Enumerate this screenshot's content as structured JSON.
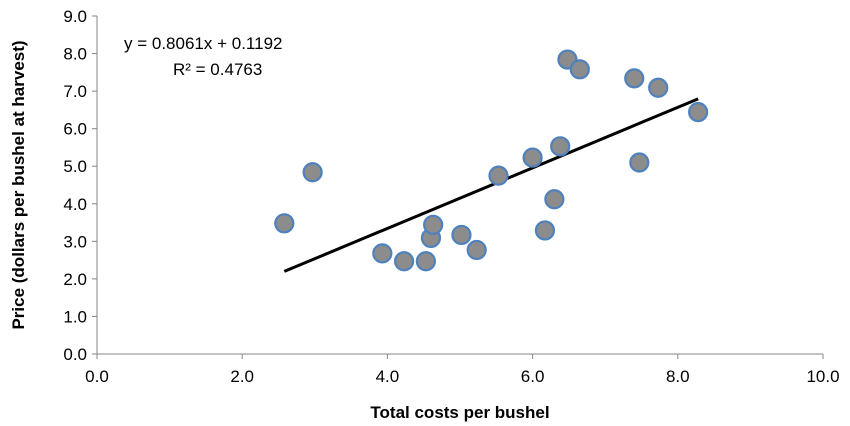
{
  "chart_data": {
    "type": "scatter",
    "title": "",
    "xlabel": "Total costs per bushel",
    "ylabel": "Price (dollars per bushel at harvest)",
    "xlim": [
      0,
      10
    ],
    "ylim": [
      0,
      9
    ],
    "x_ticks": [
      "0.0",
      "2.0",
      "4.0",
      "6.0",
      "8.0",
      "10.0"
    ],
    "y_ticks": [
      "0.0",
      "1.0",
      "2.0",
      "3.0",
      "4.0",
      "5.0",
      "6.0",
      "7.0",
      "8.0",
      "9.0"
    ],
    "grid": false,
    "legend": "none",
    "marker_fill": "#8c8c8c",
    "marker_edge": "#4f81bd",
    "trendline_color": "#000000",
    "points": [
      {
        "x": 2.58,
        "y": 3.48
      },
      {
        "x": 2.97,
        "y": 4.84
      },
      {
        "x": 3.93,
        "y": 2.68
      },
      {
        "x": 4.23,
        "y": 2.47
      },
      {
        "x": 4.53,
        "y": 2.47
      },
      {
        "x": 4.6,
        "y": 3.09
      },
      {
        "x": 4.63,
        "y": 3.44
      },
      {
        "x": 5.02,
        "y": 3.17
      },
      {
        "x": 5.23,
        "y": 2.77
      },
      {
        "x": 5.53,
        "y": 4.75
      },
      {
        "x": 6.0,
        "y": 5.23
      },
      {
        "x": 6.17,
        "y": 3.29
      },
      {
        "x": 6.3,
        "y": 4.12
      },
      {
        "x": 6.38,
        "y": 5.53
      },
      {
        "x": 6.48,
        "y": 7.84
      },
      {
        "x": 6.65,
        "y": 7.58
      },
      {
        "x": 7.4,
        "y": 7.34
      },
      {
        "x": 7.47,
        "y": 5.1
      },
      {
        "x": 7.73,
        "y": 7.09
      },
      {
        "x": 8.28,
        "y": 6.44
      }
    ],
    "trendline": {
      "slope": 0.8061,
      "intercept": 0.1192,
      "x_range": [
        2.58,
        8.28
      ],
      "equation": "y = 0.8061x + 0.1192",
      "r_squared": "R² = 0.4763"
    }
  }
}
